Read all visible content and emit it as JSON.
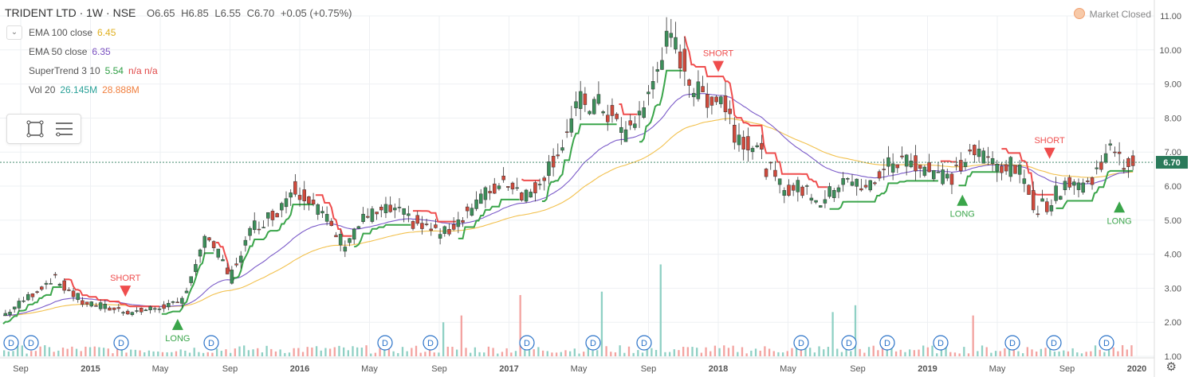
{
  "header": {
    "symbol": "TRIDENT LTD · 1W · NSE",
    "open": "O6.65",
    "high": "H6.85",
    "low": "L6.55",
    "close": "C6.70",
    "change": "+0.05 (+0.75%)"
  },
  "market_status": "Market Closed",
  "indicators": [
    {
      "label": "EMA 100 close",
      "value": "6.45",
      "value2": "",
      "color": "#e0b020",
      "color2": ""
    },
    {
      "label": "EMA 50 close",
      "value": "6.35",
      "value2": "",
      "color": "#7a50c0",
      "color2": ""
    },
    {
      "label": "SuperTrend 3 10",
      "value": "5.54",
      "value2": "n/a  n/a",
      "color": "#2e9e44",
      "color2": "#e04848"
    },
    {
      "label": "Vol 20",
      "value": "26.145M",
      "value2": "28.888M",
      "color": "#2aa198",
      "color2": "#f08040"
    }
  ],
  "colors": {
    "up": "#3c8f5a",
    "down": "#d04a3c",
    "upVol": "#8fd0c4",
    "downVol": "#f3a3a0",
    "ema100": "#f2c14e",
    "ema50": "#7a5ac8",
    "stUp": "#3aa54a",
    "stDown": "#ef4d4d",
    "grid": "#eef0f3",
    "axis": "#555555",
    "last": "#2a7a5a"
  },
  "chart_data": {
    "type": "candlestick",
    "y_axis_ticks": [
      "1.00",
      "2.00",
      "3.00",
      "4.00",
      "5.00",
      "6.00",
      "7.00",
      "8.00",
      "9.00",
      "10.00",
      "11.00"
    ],
    "ylim": [
      1.0,
      11.0
    ],
    "x_axis_ticks": [
      "Sep",
      "2015",
      "May",
      "Sep",
      "2016",
      "May",
      "Sep",
      "2017",
      "May",
      "Sep",
      "2018",
      "May",
      "Sep",
      "2019",
      "May",
      "Sep",
      "2020"
    ],
    "last_price": "6.70",
    "signals": [
      {
        "label": "SHORT",
        "type": "short",
        "date": "2015-03",
        "price": 2.75
      },
      {
        "label": "LONG",
        "type": "long",
        "date": "2015-06",
        "price": 2.1
      },
      {
        "label": "SHORT",
        "type": "short",
        "date": "2018-01",
        "price": 9.35
      },
      {
        "label": "LONG",
        "type": "long",
        "date": "2019-03",
        "price": 5.75
      },
      {
        "label": "SHORT",
        "type": "short",
        "date": "2019-08",
        "price": 6.8
      },
      {
        "label": "LONG",
        "type": "long",
        "date": "2019-12",
        "price": 5.55
      }
    ],
    "dividend_label": "D",
    "dividend_count": 16,
    "price_path": [
      [
        0,
        2.2
      ],
      [
        10,
        2.7
      ],
      [
        22,
        3.3
      ],
      [
        35,
        2.6
      ],
      [
        48,
        2.4
      ],
      [
        58,
        2.3
      ],
      [
        66,
        2.4
      ],
      [
        72,
        2.5
      ],
      [
        78,
        2.5
      ],
      [
        90,
        4.6
      ],
      [
        100,
        3.3
      ],
      [
        110,
        4.8
      ],
      [
        120,
        5.2
      ],
      [
        128,
        6.0
      ],
      [
        135,
        5.7
      ],
      [
        150,
        4.3
      ],
      [
        160,
        5.1
      ],
      [
        172,
        5.3
      ],
      [
        185,
        4.8
      ],
      [
        195,
        4.6
      ],
      [
        210,
        5.6
      ],
      [
        222,
        6.2
      ],
      [
        232,
        5.7
      ],
      [
        245,
        7.0
      ],
      [
        255,
        8.5
      ],
      [
        265,
        8.3
      ],
      [
        275,
        7.5
      ],
      [
        285,
        8.6
      ],
      [
        292,
        10.2
      ],
      [
        298,
        10.0
      ],
      [
        306,
        8.7
      ],
      [
        318,
        8.6
      ],
      [
        323,
        7.6
      ],
      [
        332,
        7.2
      ],
      [
        342,
        6.0
      ],
      [
        355,
        5.9
      ],
      [
        362,
        5.5
      ],
      [
        372,
        6.4
      ],
      [
        380,
        5.8
      ],
      [
        390,
        6.6
      ],
      [
        400,
        6.8
      ],
      [
        410,
        6.5
      ],
      [
        418,
        6.2
      ],
      [
        428,
        7.0
      ],
      [
        438,
        6.7
      ],
      [
        448,
        6.5
      ],
      [
        456,
        5.4
      ],
      [
        462,
        5.5
      ],
      [
        470,
        6.2
      ],
      [
        480,
        6.0
      ],
      [
        488,
        7.2
      ],
      [
        492,
        6.7
      ]
    ],
    "volume_spikes": [
      [
        199,
        3.0
      ],
      [
        194,
        1.0
      ],
      [
        202,
        1.2
      ],
      [
        228,
        1.8
      ],
      [
        264,
        1.9
      ],
      [
        290,
        2.7
      ],
      [
        293,
        1.8
      ],
      [
        366,
        1.3
      ],
      [
        376,
        1.5
      ],
      [
        428,
        1.2
      ]
    ]
  }
}
